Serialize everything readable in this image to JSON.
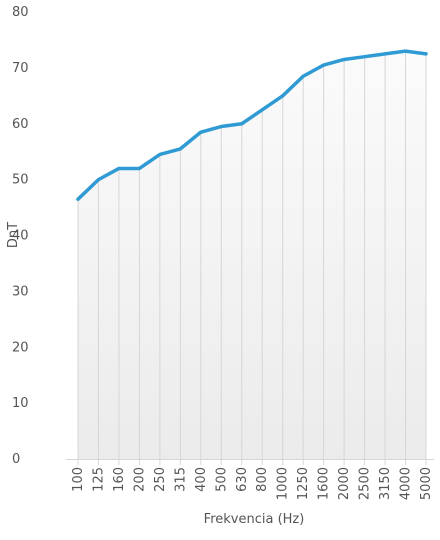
{
  "colors": {
    "line": "#2f9ad3",
    "grid": "#d6d6d6",
    "tick_text": "#555555",
    "area_top": "#fbfbfb",
    "area_bottom": "#ebebeb"
  },
  "chart_data": {
    "type": "area",
    "title": "",
    "xlabel": "Frekvencia (Hz)",
    "ylabel": "DnT",
    "ylim": [
      0,
      80
    ],
    "y_ticks": [
      0,
      10,
      20,
      30,
      40,
      50,
      60,
      70,
      80
    ],
    "categories": [
      "100",
      "125",
      "160",
      "200",
      "250",
      "315",
      "400",
      "500",
      "630",
      "800",
      "1000",
      "1250",
      "1600",
      "2000",
      "2500",
      "3150",
      "4000",
      "5000"
    ],
    "series": [
      {
        "values": [
          46.5,
          50,
          52,
          52,
          54.5,
          55.5,
          58.5,
          59.5,
          60,
          62.5,
          65,
          68.5,
          70.5,
          71.5,
          72,
          72.5,
          73,
          72.5
        ]
      }
    ],
    "grid": true,
    "legend": "none"
  }
}
